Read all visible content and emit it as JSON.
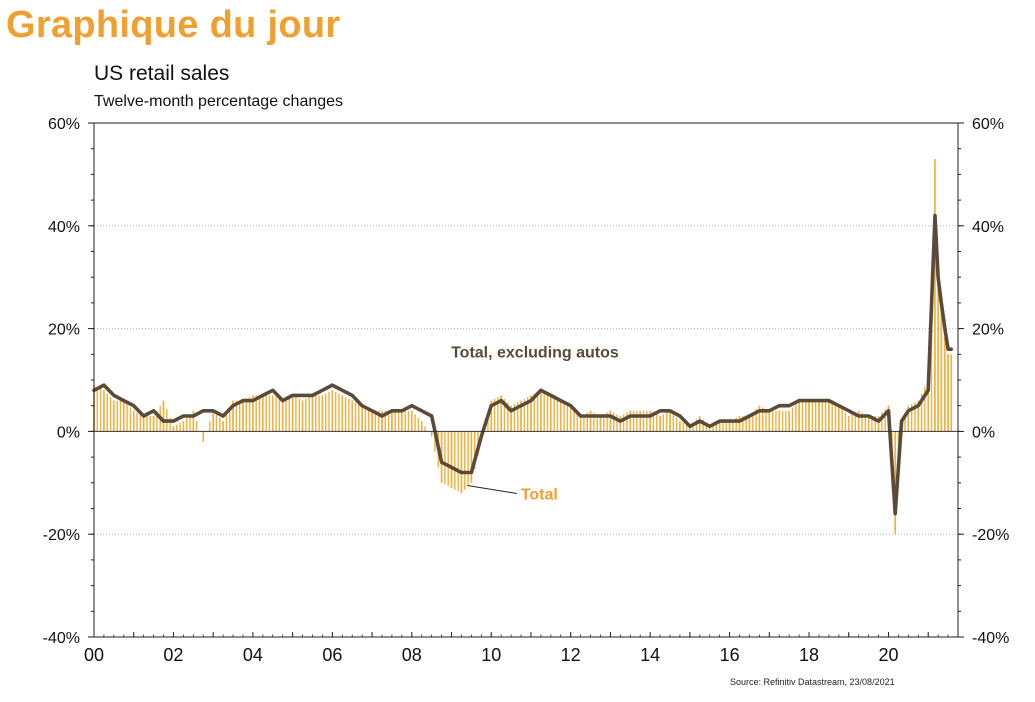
{
  "header": {
    "title": "Graphique du jour"
  },
  "source": "Source: Refinitiv Datastream, 23/08/2021",
  "colors": {
    "header": "#f0a030",
    "total": "#f0b040",
    "ex_autos": "#5a4a3a",
    "grid": "#b0b0b0"
  },
  "chart_data": {
    "type": "line",
    "title": "US retail sales",
    "subtitle": "Twelve-month percentage changes",
    "xlabel": "",
    "ylabel": "",
    "ylim": [
      -40,
      60
    ],
    "yticks": [
      -40,
      -20,
      0,
      20,
      40,
      60
    ],
    "ytick_labels": [
      "-40%",
      "-20%",
      "0%",
      "20%",
      "40%",
      "60%"
    ],
    "xlim": [
      2000.0,
      2021.75
    ],
    "xticks": [
      2000,
      2002,
      2004,
      2006,
      2008,
      2010,
      2012,
      2014,
      2016,
      2018,
      2020
    ],
    "xtick_labels": [
      "00",
      "02",
      "04",
      "06",
      "08",
      "10",
      "12",
      "14",
      "16",
      "18",
      "20"
    ],
    "grid": true,
    "dual_axis": true,
    "annotations": [
      {
        "text": "Total, excluding autos",
        "x": 2011.1,
        "y": 15.5,
        "series": "Total, excluding autos"
      },
      {
        "text": "Total",
        "x": 2011.5,
        "y": -11.5,
        "series": "Total"
      }
    ],
    "series": [
      {
        "name": "Total, excluding autos",
        "style": "line",
        "x": [
          2000.0,
          2000.25,
          2000.5,
          2000.75,
          2001.0,
          2001.25,
          2001.5,
          2001.75,
          2002.0,
          2002.25,
          2002.5,
          2002.75,
          2003.0,
          2003.25,
          2003.5,
          2003.75,
          2004.0,
          2004.25,
          2004.5,
          2004.75,
          2005.0,
          2005.25,
          2005.5,
          2005.75,
          2006.0,
          2006.25,
          2006.5,
          2006.75,
          2007.0,
          2007.25,
          2007.5,
          2007.75,
          2008.0,
          2008.25,
          2008.5,
          2008.75,
          2009.0,
          2009.25,
          2009.5,
          2009.75,
          2010.0,
          2010.25,
          2010.5,
          2010.75,
          2011.0,
          2011.25,
          2011.5,
          2011.75,
          2012.0,
          2012.25,
          2012.5,
          2012.75,
          2013.0,
          2013.25,
          2013.5,
          2013.75,
          2014.0,
          2014.25,
          2014.5,
          2014.75,
          2015.0,
          2015.25,
          2015.5,
          2015.75,
          2016.0,
          2016.25,
          2016.5,
          2016.75,
          2017.0,
          2017.25,
          2017.5,
          2017.75,
          2018.0,
          2018.25,
          2018.5,
          2018.75,
          2019.0,
          2019.25,
          2019.5,
          2019.75,
          2020.0,
          2020.17,
          2020.33,
          2020.5,
          2020.75,
          2021.0,
          2021.17,
          2021.25,
          2021.33,
          2021.42,
          2021.5,
          2021.58
        ],
        "values": [
          8,
          9,
          7,
          6,
          5,
          3,
          4,
          2,
          2,
          3,
          3,
          4,
          4,
          3,
          5,
          6,
          6,
          7,
          8,
          6,
          7,
          7,
          7,
          8,
          9,
          8,
          7,
          5,
          4,
          3,
          4,
          4,
          5,
          4,
          3,
          -6,
          -7,
          -8,
          -8,
          -1,
          5,
          6,
          4,
          5,
          6,
          8,
          7,
          6,
          5,
          3,
          3,
          3,
          3,
          2,
          3,
          3,
          3,
          4,
          4,
          3,
          1,
          2,
          1,
          2,
          2,
          2,
          3,
          4,
          4,
          5,
          5,
          6,
          6,
          6,
          6,
          5,
          4,
          3,
          3,
          2,
          4,
          -16,
          2,
          4,
          5,
          8,
          42,
          30,
          25,
          20,
          16,
          16
        ]
      },
      {
        "name": "Total",
        "style": "bar",
        "x": [
          2000.0,
          2000.25,
          2000.5,
          2000.75,
          2001.0,
          2001.25,
          2001.5,
          2001.75,
          2002.0,
          2002.25,
          2002.5,
          2002.75,
          2003.0,
          2003.25,
          2003.5,
          2003.75,
          2004.0,
          2004.25,
          2004.5,
          2004.75,
          2005.0,
          2005.25,
          2005.5,
          2005.75,
          2006.0,
          2006.25,
          2006.5,
          2006.75,
          2007.0,
          2007.25,
          2007.5,
          2007.75,
          2008.0,
          2008.25,
          2008.5,
          2008.75,
          2009.0,
          2009.25,
          2009.5,
          2009.75,
          2010.0,
          2010.25,
          2010.5,
          2010.75,
          2011.0,
          2011.25,
          2011.5,
          2011.75,
          2012.0,
          2012.25,
          2012.5,
          2012.75,
          2013.0,
          2013.25,
          2013.5,
          2013.75,
          2014.0,
          2014.25,
          2014.5,
          2014.75,
          2015.0,
          2015.25,
          2015.5,
          2015.75,
          2016.0,
          2016.25,
          2016.5,
          2016.75,
          2017.0,
          2017.25,
          2017.5,
          2017.75,
          2018.0,
          2018.25,
          2018.5,
          2018.75,
          2019.0,
          2019.25,
          2019.5,
          2019.75,
          2020.0,
          2020.17,
          2020.33,
          2020.5,
          2020.75,
          2021.0,
          2021.17,
          2021.25,
          2021.33,
          2021.42,
          2021.5,
          2021.58
        ],
        "values": [
          9,
          8,
          6,
          6,
          4,
          3,
          3,
          6,
          1,
          2,
          4,
          -2,
          4,
          2,
          6,
          6,
          7,
          7,
          7,
          6,
          7,
          6,
          7,
          7,
          8,
          7,
          6,
          5,
          4,
          4,
          4,
          4,
          4,
          2,
          -1,
          -10,
          -11,
          -12,
          -10,
          -2,
          6,
          7,
          5,
          6,
          7,
          8,
          7,
          6,
          5,
          3,
          4,
          3,
          4,
          3,
          4,
          4,
          4,
          3,
          4,
          2,
          1,
          3,
          1,
          2,
          2,
          3,
          3,
          5,
          4,
          4,
          4,
          6,
          6,
          6,
          6,
          5,
          3,
          4,
          3,
          3,
          5,
          -20,
          1,
          5,
          6,
          10,
          53,
          32,
          26,
          18,
          15,
          15
        ]
      }
    ]
  }
}
